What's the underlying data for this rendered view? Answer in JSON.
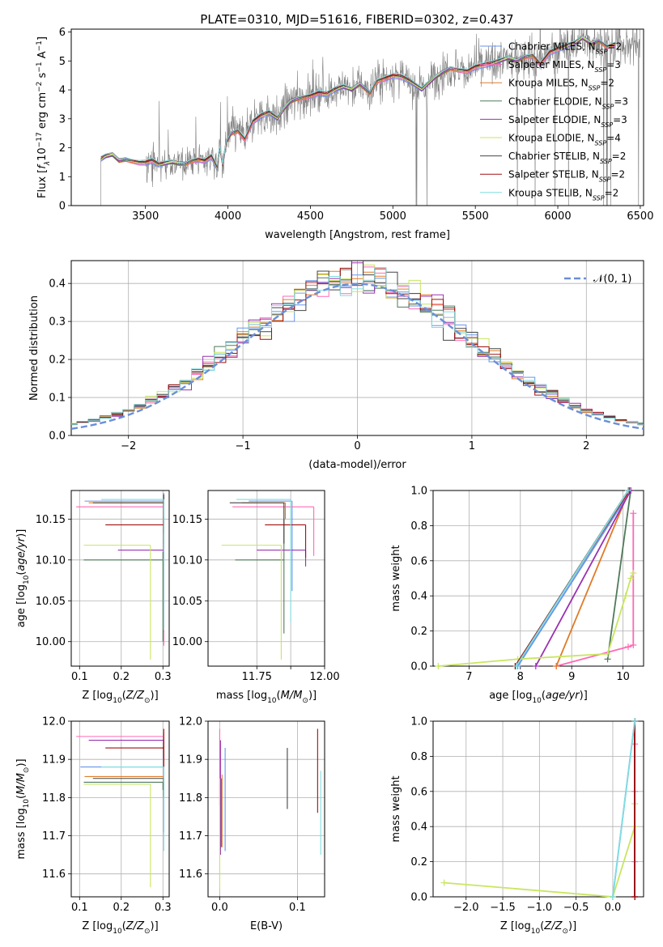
{
  "figure": {
    "title": "PLATE=0310, MJD=51616, FIBERID=0302, z=0.437"
  },
  "colors": {
    "Chabrier MILES": "#6495ed",
    "Salpeter MILES": "#ff69b4",
    "Kroupa MILES": "#e07b28",
    "Chabrier ELODIE": "#4f7a5a",
    "Salpeter ELODIE": "#9a30b0",
    "Kroupa ELODIE": "#c8e660",
    "Chabrier STELIB": "#444444",
    "Salpeter STELIB": "#a01010",
    "Kroupa STELIB": "#80dde0",
    "spectrum": "#808080",
    "normal": "#6a8fd8"
  },
  "chart_data": [
    {
      "id": "spectrum",
      "type": "line",
      "xlabel": "wavelength [Angstrom, rest frame]",
      "ylabel": "Flux [f_λ 10^-17 erg cm^-2 s^-1 A^-1]",
      "xlim": [
        3050,
        6520
      ],
      "ylim": [
        0,
        6.1
      ],
      "xticks": [
        3500,
        4000,
        4500,
        5000,
        5500,
        6000,
        6500
      ],
      "yticks": [
        0,
        1,
        2,
        3,
        4,
        5,
        6
      ],
      "legend_position": "upper-right",
      "legend": [
        {
          "name": "Chabrier MILES",
          "nssp": 2
        },
        {
          "name": "Salpeter MILES",
          "nssp": 3
        },
        {
          "name": "Kroupa MILES",
          "nssp": 2
        },
        {
          "name": "Chabrier ELODIE",
          "nssp": 3
        },
        {
          "name": "Salpeter ELODIE",
          "nssp": 3
        },
        {
          "name": "Kroupa ELODIE",
          "nssp": 4
        },
        {
          "name": "Chabrier STELIB",
          "nssp": 2
        },
        {
          "name": "Salpeter STELIB",
          "nssp": 2
        },
        {
          "name": "Kroupa STELIB",
          "nssp": 2
        }
      ],
      "model_curve": {
        "x": [
          3230,
          3260,
          3300,
          3340,
          3380,
          3420,
          3460,
          3500,
          3540,
          3580,
          3620,
          3660,
          3700,
          3740,
          3780,
          3820,
          3860,
          3900,
          3934,
          3950,
          3969,
          3990,
          4020,
          4060,
          4102,
          4150,
          4200,
          4250,
          4300,
          4340,
          4380,
          4420,
          4460,
          4500,
          4550,
          4600,
          4650,
          4700,
          4750,
          4800,
          4861,
          4900,
          4950,
          5000,
          5050,
          5100,
          5175,
          5250,
          5300,
          5350,
          5400,
          5450,
          5500,
          5550,
          5600,
          5650,
          5700,
          5750,
          5800,
          5850,
          5893,
          5950,
          6000,
          6050,
          6100,
          6150,
          6200,
          6250,
          6300,
          6350
        ],
        "y": [
          1.6,
          1.7,
          1.75,
          1.55,
          1.6,
          1.55,
          1.5,
          1.5,
          1.55,
          1.4,
          1.45,
          1.5,
          1.45,
          1.45,
          1.55,
          1.6,
          1.55,
          1.7,
          1.3,
          2.0,
          1.4,
          2.2,
          2.5,
          2.6,
          2.3,
          2.9,
          3.1,
          3.2,
          3.0,
          3.35,
          3.6,
          3.7,
          3.75,
          3.8,
          3.9,
          3.85,
          4.0,
          4.1,
          4.0,
          4.2,
          3.9,
          4.3,
          4.4,
          4.5,
          4.45,
          4.3,
          4.0,
          4.4,
          4.6,
          4.75,
          4.7,
          4.65,
          4.8,
          4.85,
          4.9,
          5.0,
          5.1,
          5.0,
          5.15,
          5.2,
          4.9,
          5.3,
          5.4,
          5.5,
          5.6,
          5.8,
          5.6,
          5.7,
          5.5,
          5.6
        ]
      }
    },
    {
      "id": "residuals",
      "type": "line",
      "xlabel": "(data-model)/error",
      "ylabel": "Normed distribution",
      "xlim": [
        -2.5,
        2.5
      ],
      "ylim": [
        0,
        0.46
      ],
      "xticks": [
        -2,
        -1,
        0,
        1,
        2
      ],
      "yticks": [
        0.0,
        0.1,
        0.2,
        0.3,
        0.4
      ],
      "grid": true,
      "legend_position": "upper-right",
      "legend": [
        "𝒩(0, 1)"
      ],
      "normal": {
        "mean": 0,
        "sigma": 1
      }
    },
    {
      "id": "age-vs-Z",
      "type": "scatter",
      "xlabel": "Z [log10(Z/Z☉)]",
      "ylabel": "age  [log10(age/yr)]",
      "xlim": [
        0.08,
        0.315
      ],
      "ylim": [
        9.97,
        10.185
      ],
      "xticks": [
        0.1,
        0.2,
        0.3
      ],
      "yticks": [
        10.0,
        10.05,
        10.1,
        10.15
      ],
      "grid": true,
      "series": [
        {
          "name": "Chabrier MILES",
          "x": 0.302,
          "xerr": [
            0.19,
            0.0
          ],
          "y": 10.172,
          "yerr": [
            0.16,
            0.01
          ]
        },
        {
          "name": "Salpeter MILES",
          "x": 0.302,
          "xerr": [
            0.21,
            0.0
          ],
          "y": 10.165,
          "yerr": [
            0.17,
            0.01
          ]
        },
        {
          "name": "Kroupa MILES",
          "x": 0.302,
          "xerr": [
            0.18,
            0.0
          ],
          "y": 10.17,
          "yerr": [
            0.02,
            0.005
          ]
        },
        {
          "name": "Chabrier ELODIE",
          "x": 0.3,
          "xerr": [
            0.19,
            0.0
          ],
          "y": 10.1,
          "yerr": [
            0.1,
            0.01
          ]
        },
        {
          "name": "Salpeter ELODIE",
          "x": 0.302,
          "xerr": [
            0.11,
            0.0
          ],
          "y": 10.112,
          "yerr": [
            0.01,
            0.01
          ]
        },
        {
          "name": "Kroupa ELODIE",
          "x": 0.27,
          "xerr": [
            0.16,
            0.0
          ],
          "y": 10.118,
          "yerr": [
            0.14,
            0.0
          ]
        },
        {
          "name": "Chabrier STELIB",
          "x": 0.302,
          "xerr": [
            0.17,
            0.0
          ],
          "y": 10.17,
          "yerr": [
            0.05,
            0.01
          ]
        },
        {
          "name": "Salpeter STELIB",
          "x": 0.302,
          "xerr": [
            0.14,
            0.0
          ],
          "y": 10.143,
          "yerr": [
            0.01,
            0.01
          ]
        },
        {
          "name": "Kroupa STELIB",
          "x": 0.302,
          "xerr": [
            0.15,
            0.0
          ],
          "y": 10.174,
          "yerr": [
            0.16,
            0.0
          ]
        }
      ]
    },
    {
      "id": "age-vs-mass",
      "type": "scatter",
      "xlabel": "mass [log10(M/M☉)]",
      "ylabel": "",
      "xlim": [
        11.57,
        12.0
      ],
      "ylim": [
        9.97,
        10.185
      ],
      "xticks": [
        11.75,
        11.875,
        12.0
      ],
      "xticklabels": [
        "11.75",
        "",
        "12.00"
      ],
      "yticks": [
        10.0,
        10.05,
        10.1,
        10.15
      ],
      "grid": true,
      "series": [
        {
          "name": "Chabrier MILES",
          "x": 11.88,
          "xerr": [
            0.16,
            0.0
          ],
          "y": 10.172,
          "yerr": [
            0.11,
            0.0
          ]
        },
        {
          "name": "Salpeter MILES",
          "x": 11.96,
          "xerr": [
            0.3,
            0.0
          ],
          "y": 10.165,
          "yerr": [
            0.06,
            0.0
          ]
        },
        {
          "name": "Kroupa MILES",
          "x": 11.855,
          "xerr": [
            0.16,
            0.0
          ],
          "y": 10.17,
          "yerr": [
            0.02,
            0.0
          ]
        },
        {
          "name": "Chabrier ELODIE",
          "x": 11.85,
          "xerr": [
            0.18,
            0.0
          ],
          "y": 10.1,
          "yerr": [
            0.09,
            0.05
          ]
        },
        {
          "name": "Salpeter ELODIE",
          "x": 11.93,
          "xerr": [
            0.18,
            0.0
          ],
          "y": 10.112,
          "yerr": [
            0.02,
            0.0
          ]
        },
        {
          "name": "Kroupa ELODIE",
          "x": 11.84,
          "xerr": [
            0.22,
            0.0
          ],
          "y": 10.118,
          "yerr": [
            0.14,
            0.0
          ]
        },
        {
          "name": "Chabrier STELIB",
          "x": 11.85,
          "xerr": [
            0.2,
            0.0
          ],
          "y": 10.17,
          "yerr": [
            0.05,
            0.0
          ]
        },
        {
          "name": "Salpeter STELIB",
          "x": 11.93,
          "xerr": [
            0.15,
            0.0
          ],
          "y": 10.143,
          "yerr": [
            0.04,
            0.0
          ]
        },
        {
          "name": "Kroupa STELIB",
          "x": 11.875,
          "xerr": [
            0.2,
            0.0
          ],
          "y": 10.174,
          "yerr": [
            0.15,
            0.0
          ]
        }
      ]
    },
    {
      "id": "weight-vs-age",
      "type": "line",
      "xlabel": "age  [log10(age/yr)]",
      "ylabel": "mass weight",
      "xlim": [
        6.3,
        10.4
      ],
      "ylim": [
        0,
        1.0
      ],
      "xticks": [
        7,
        8,
        9,
        10
      ],
      "yticks": [
        0.0,
        0.2,
        0.4,
        0.6,
        0.8,
        1.0
      ],
      "grid": true,
      "series": [
        {
          "name": "Chabrier MILES",
          "x": [
            7.95,
            10.15
          ],
          "y": [
            0.0,
            1.0
          ]
        },
        {
          "name": "Salpeter MILES",
          "x": [
            8.7,
            10.1,
            10.2,
            10.2
          ],
          "y": [
            0.0,
            0.11,
            0.12,
            0.87
          ]
        },
        {
          "name": "Kroupa MILES",
          "x": [
            8.7,
            10.12
          ],
          "y": [
            0.0,
            1.0
          ]
        },
        {
          "name": "Chabrier ELODIE",
          "x": [
            9.7,
            10.15
          ],
          "y": [
            0.04,
            1.0
          ]
        },
        {
          "name": "Salpeter ELODIE",
          "x": [
            8.3,
            10.15
          ],
          "y": [
            0.0,
            1.0
          ]
        },
        {
          "name": "Kroupa ELODIE",
          "x": [
            6.4,
            7.95,
            9.7,
            10.05,
            10.15,
            10.2
          ],
          "y": [
            0.0,
            0.04,
            0.07,
            0.4,
            0.5,
            0.53
          ]
        },
        {
          "name": "Chabrier STELIB",
          "x": [
            7.9,
            10.1
          ],
          "y": [
            0.0,
            1.0
          ]
        },
        {
          "name": "Salpeter STELIB",
          "x": [
            7.9,
            10.12
          ],
          "y": [
            0.0,
            1.0
          ]
        },
        {
          "name": "Kroupa STELIB",
          "x": [
            7.92,
            10.1
          ],
          "y": [
            0.0,
            1.0
          ]
        }
      ]
    },
    {
      "id": "mass-vs-Z",
      "type": "scatter",
      "xlabel": "Z [log10(Z/Z☉)]",
      "ylabel": "mass [log10(M/M☉)]",
      "xlim": [
        0.08,
        0.315
      ],
      "ylim": [
        11.54,
        12.0
      ],
      "xticks": [
        0.1,
        0.2,
        0.3
      ],
      "yticks": [
        11.6,
        11.7,
        11.8,
        11.9,
        12.0
      ],
      "grid": true,
      "series": [
        {
          "name": "Chabrier MILES",
          "x": 0.302,
          "xerr": [
            0.2,
            0.0
          ],
          "y": 11.88,
          "yerr": [
            0.17,
            0.05
          ]
        },
        {
          "name": "Salpeter MILES",
          "x": 0.302,
          "xerr": [
            0.21,
            0.0
          ],
          "y": 11.96,
          "yerr": [
            0.08,
            0.01
          ]
        },
        {
          "name": "Kroupa MILES",
          "x": 0.302,
          "xerr": [
            0.19,
            0.0
          ],
          "y": 11.855,
          "yerr": [
            0.02,
            0.0
          ]
        },
        {
          "name": "Chabrier ELODIE",
          "x": 0.3,
          "xerr": [
            0.19,
            0.0
          ],
          "y": 11.84,
          "yerr": [
            0.02,
            0.0
          ]
        },
        {
          "name": "Salpeter ELODIE",
          "x": 0.302,
          "xerr": [
            0.18,
            0.0
          ],
          "y": 11.95,
          "yerr": [
            0.05,
            0.0
          ]
        },
        {
          "name": "Kroupa ELODIE",
          "x": 0.27,
          "xerr": [
            0.16,
            0.0
          ],
          "y": 11.835,
          "yerr": [
            0.27,
            0.0
          ]
        },
        {
          "name": "Chabrier STELIB",
          "x": 0.302,
          "xerr": [
            0.17,
            0.0
          ],
          "y": 11.85,
          "yerr": [
            0.05,
            0.0
          ]
        },
        {
          "name": "Salpeter STELIB",
          "x": 0.302,
          "xerr": [
            0.14,
            0.0
          ],
          "y": 11.93,
          "yerr": [
            0.05,
            0.05
          ]
        },
        {
          "name": "Kroupa STELIB",
          "x": 0.302,
          "xerr": [
            0.15,
            0.0
          ],
          "y": 11.88,
          "yerr": [
            0.22,
            0.0
          ]
        }
      ]
    },
    {
      "id": "mass-vs-EBV",
      "type": "scatter",
      "xlabel": "E(B-V)",
      "ylabel": "",
      "xlim": [
        -0.015,
        0.135
      ],
      "ylim": [
        11.54,
        12.0
      ],
      "xticks": [
        0.0,
        0.1
      ],
      "yticks": [
        11.6,
        11.7,
        11.8,
        11.9,
        12.0
      ],
      "grid": true,
      "series": [
        {
          "name": "Chabrier MILES",
          "x": 0.007,
          "y": 11.82,
          "yerr": [
            0.16,
            0.11
          ]
        },
        {
          "name": "Salpeter MILES",
          "x": 0.0,
          "y": 11.92,
          "yerr": [
            0.14,
            0.06
          ]
        },
        {
          "name": "Kroupa MILES",
          "x": 0.003,
          "y": 11.85,
          "yerr": [
            0.18,
            0.01
          ]
        },
        {
          "name": "Chabrier ELODIE",
          "x": 0.002,
          "y": 11.79,
          "yerr": [
            0.12,
            0.06
          ]
        },
        {
          "name": "Salpeter ELODIE",
          "x": 0.001,
          "y": 11.9,
          "yerr": [
            0.25,
            0.05
          ]
        },
        {
          "name": "Kroupa ELODIE",
          "x": 0.0,
          "y": 11.8,
          "yerr": [
            0.24,
            0.05
          ]
        },
        {
          "name": "Chabrier STELIB",
          "x": 0.087,
          "y": 11.85,
          "yerr": [
            0.08,
            0.08
          ]
        },
        {
          "name": "Salpeter STELIB",
          "x": 0.126,
          "y": 11.87,
          "yerr": [
            0.11,
            0.11
          ]
        },
        {
          "name": "Kroupa STELIB",
          "x": 0.13,
          "y": 11.76,
          "yerr": [
            0.11,
            0.11
          ]
        }
      ]
    },
    {
      "id": "weight-vs-Z",
      "type": "line",
      "xlabel": "Z [log10(Z/Z☉)]",
      "ylabel": "mass weight",
      "xlim": [
        -2.45,
        0.42
      ],
      "ylim": [
        0,
        1.0
      ],
      "xticks": [
        -2.0,
        -1.5,
        -1.0,
        -0.5,
        0.0
      ],
      "yticks": [
        0.0,
        0.2,
        0.4,
        0.6,
        0.8,
        1.0
      ],
      "grid": true,
      "series": [
        {
          "name": "Chabrier MILES",
          "x": [
            0.0,
            0.3
          ],
          "y": [
            0.0,
            1.0
          ]
        },
        {
          "name": "Salpeter MILES",
          "x": [
            0.3,
            0.3,
            0.3,
            0.3
          ],
          "y": [
            0.0,
            0.2,
            0.6,
            0.87
          ]
        },
        {
          "name": "Kroupa MILES",
          "x": [
            0.3,
            0.3
          ],
          "y": [
            0.0,
            1.0
          ]
        },
        {
          "name": "Chabrier ELODIE",
          "x": [
            0.3,
            0.3
          ],
          "y": [
            0.0,
            1.0
          ]
        },
        {
          "name": "Salpeter ELODIE",
          "x": [
            0.3,
            0.3
          ],
          "y": [
            0.0,
            1.0
          ]
        },
        {
          "name": "Kroupa ELODIE",
          "x": [
            -2.3,
            0.0,
            0.3,
            0.3
          ],
          "y": [
            0.08,
            0.0,
            0.4,
            0.53
          ]
        },
        {
          "name": "Chabrier STELIB",
          "x": [
            0.3,
            0.3
          ],
          "y": [
            0.0,
            1.0
          ]
        },
        {
          "name": "Salpeter STELIB",
          "x": [
            0.3,
            0.3
          ],
          "y": [
            0.0,
            1.0
          ]
        },
        {
          "name": "Kroupa STELIB",
          "x": [
            0.0,
            0.3
          ],
          "y": [
            0.0,
            1.0
          ]
        }
      ]
    }
  ]
}
